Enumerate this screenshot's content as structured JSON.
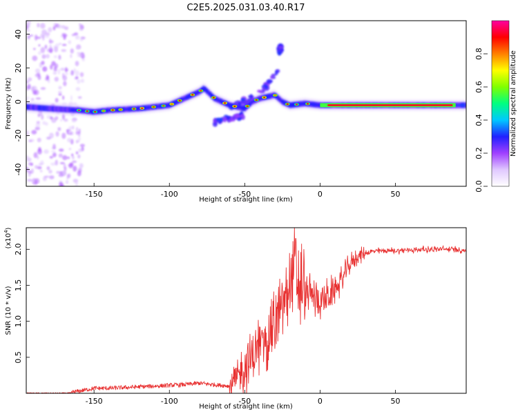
{
  "title": "C2E5.2025.031.03.40.R17",
  "chart_data": [
    {
      "type": "heatmap",
      "xlabel": "Height of straight line (km)",
      "ylabel": "Frequency (Hz)",
      "xlim": [
        -195,
        97
      ],
      "ylim": [
        -50,
        48
      ],
      "xticks": [
        -150,
        -100,
        -50,
        0,
        50
      ],
      "yticks": [
        -40,
        -20,
        0,
        20,
        40
      ],
      "grid": false,
      "colorbar": {
        "label": "Normalized spectral amplitude",
        "ticks": [
          "0.0",
          "0.2",
          "0.4",
          "0.6",
          "0.8"
        ],
        "range": [
          0,
          1
        ],
        "colors": [
          "#ffffff",
          "#e0c8ff",
          "#a040ff",
          "#2020ff",
          "#00c8ff",
          "#00ff80",
          "#80ff00",
          "#ffff00",
          "#ff8000",
          "#ff0000",
          "#ff00a0"
        ]
      },
      "ridge": {
        "x": [
          -195,
          -180,
          -160,
          -150,
          -140,
          -120,
          -100,
          -90,
          -80,
          -77,
          -70,
          -60,
          -50,
          -45,
          -40,
          -30,
          -25,
          -20,
          -10,
          0,
          20,
          50,
          80,
          97
        ],
        "y": [
          -3,
          -4,
          -5,
          -6,
          -5,
          -4,
          -2,
          2,
          6,
          8,
          2,
          -2,
          -4,
          0,
          2,
          4,
          0,
          -2,
          -1,
          -2,
          -2,
          -2,
          -2,
          -2
        ]
      },
      "side_branches": [
        {
          "x": [
            -60,
            -45,
            -35,
            -28
          ],
          "y": [
            -3,
            2,
            10,
            18
          ]
        },
        {
          "x": [
            -70,
            -60,
            -50
          ],
          "y": [
            -12,
            -10,
            -8
          ]
        },
        {
          "x": [
            -27,
            -26
          ],
          "y": [
            30,
            32
          ]
        }
      ]
    },
    {
      "type": "line",
      "xlabel": "Height of straight line (km)",
      "ylabel": "SNR (10 * v/v)",
      "scale_label": "(x10",
      "scale_exp": "4",
      "xlim": [
        -195,
        97
      ],
      "ylim": [
        0,
        2.3
      ],
      "xticks": [
        -150,
        -100,
        -50,
        0,
        50
      ],
      "yticks": [
        0.5,
        1.0,
        1.5,
        2.0
      ],
      "ytick_labels": [
        "0.5",
        "1.0",
        "1.5",
        "2.0"
      ],
      "grid": false,
      "series": [
        {
          "color": "#e83030",
          "x": [
            -195,
            -180,
            -170,
            -160,
            -150,
            -140,
            -130,
            -120,
            -110,
            -100,
            -90,
            -80,
            -75,
            -70,
            -60,
            -55,
            -50,
            -45,
            -40,
            -35,
            -30,
            -25,
            -20,
            -17,
            -15,
            -10,
            -5,
            0,
            5,
            10,
            15,
            20,
            25,
            30,
            35,
            40,
            50,
            60,
            70,
            80,
            90,
            97
          ],
          "y": [
            0.0,
            0.0,
            0.0,
            0.03,
            0.07,
            0.07,
            0.08,
            0.09,
            0.1,
            0.11,
            0.12,
            0.14,
            0.13,
            0.12,
            0.1,
            0.2,
            0.35,
            0.5,
            0.65,
            0.8,
            0.95,
            1.2,
            1.5,
            1.8,
            1.5,
            1.4,
            1.35,
            1.3,
            1.32,
            1.45,
            1.6,
            1.8,
            1.9,
            1.95,
            1.97,
            1.98,
            1.98,
            1.99,
            2.0,
            2.0,
            2.0,
            1.98
          ]
        }
      ]
    }
  ]
}
